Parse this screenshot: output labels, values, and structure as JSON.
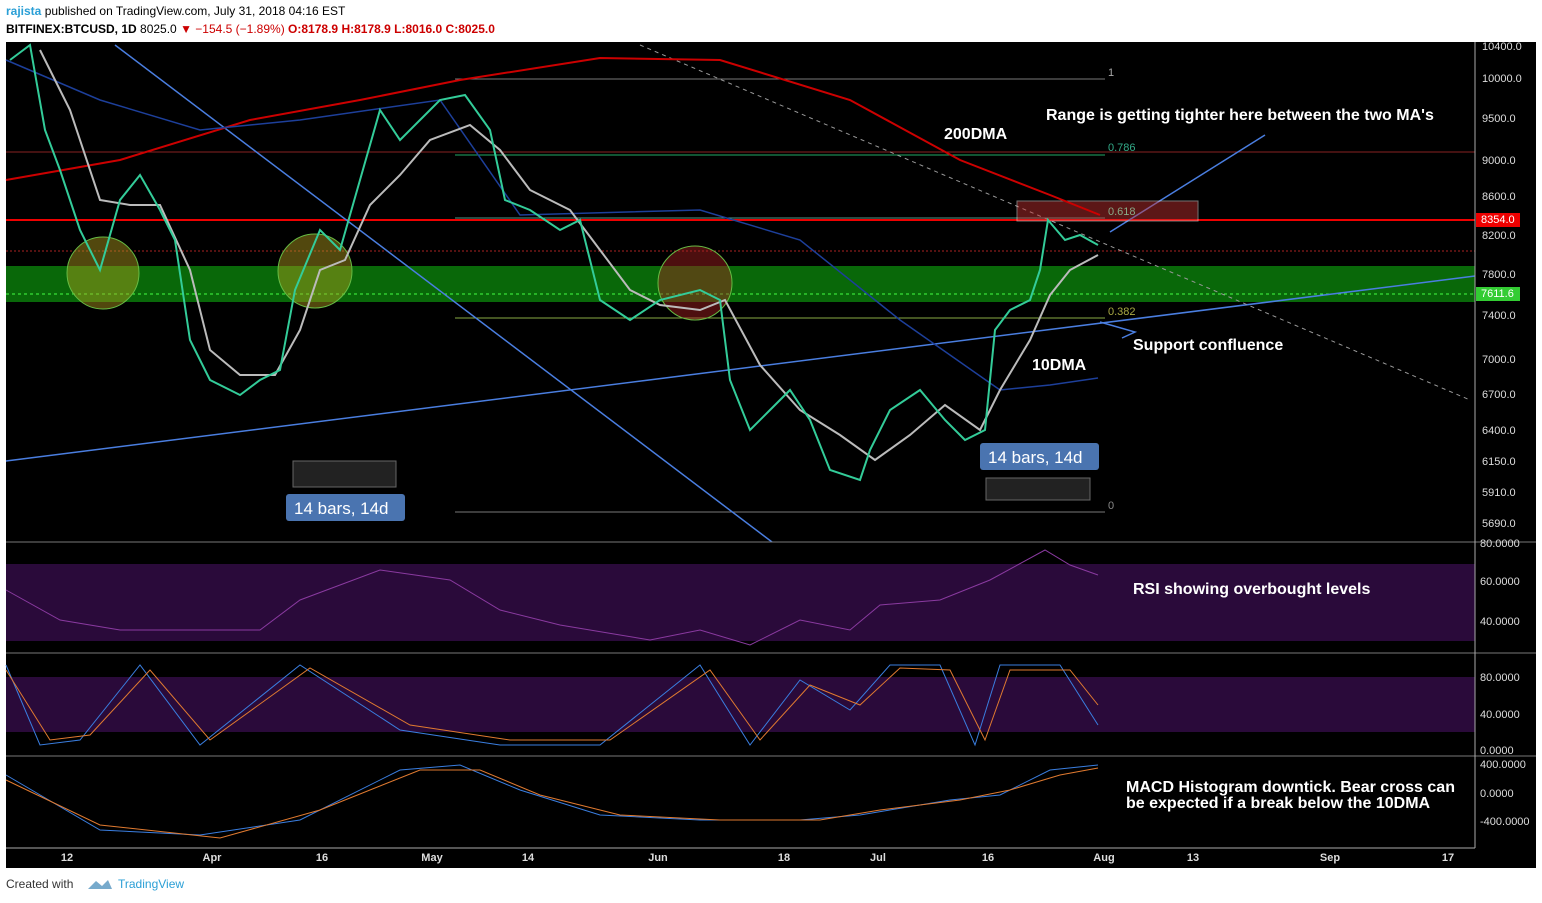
{
  "header": {
    "author": "rajista",
    "published": "published on TradingView.com, July 31, 2018 04:16 EST",
    "symbol": "BITFINEX:BTCUSD, 1D",
    "price": "8025.0",
    "change": "−154.5 (−1.89%)",
    "o": "O:8178.9",
    "h": "H:8178.9",
    "l": "L:8016.0",
    "c": "C:8025.0"
  },
  "price_axis": [
    "10400.0",
    "10000.0",
    "9500.0",
    "9000.0",
    "8600.0",
    "8200.0",
    "7800.0",
    "7400.0",
    "7000.0",
    "6700.0",
    "6400.0",
    "6150.0",
    "5910.0",
    "5690.0"
  ],
  "badges": [
    "8354.0",
    "7611.6"
  ],
  "fib": [
    "1",
    "0.786",
    "0.618",
    "0.382",
    "0"
  ],
  "annotations": {
    "ma200": "200DMA",
    "range": "Range is getting tighter here between the two MA's",
    "ma10": "10DMA",
    "support": "Support confluence",
    "bars1": "14 bars, 14d",
    "bars2": "14 bars, 14d",
    "rsi": "RSI showing overbought levels",
    "macd": "MACD Histogram downtick. Bear cross can be expected if a break below the 10DMA"
  },
  "rsi_axis": [
    "80.0000",
    "60.0000",
    "40.0000"
  ],
  "stoch_axis": [
    "80.0000",
    "40.0000",
    "0.0000"
  ],
  "macd_axis": [
    "400.0000",
    "0.0000",
    "-400.0000"
  ],
  "time_axis": [
    "12",
    "Apr",
    "16",
    "May",
    "14",
    "Jun",
    "18",
    "Jul",
    "16",
    "Aug",
    "13",
    "Sep",
    "17"
  ],
  "footer": {
    "created": "Created with",
    "brand": "TradingView"
  }
}
